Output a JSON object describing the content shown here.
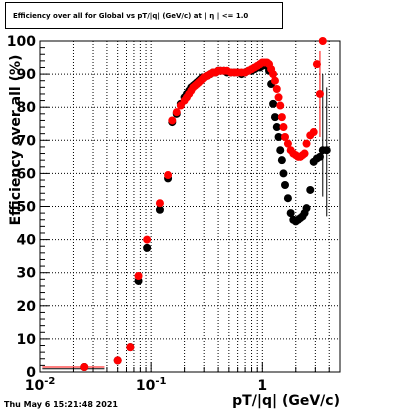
{
  "header": {
    "title": "Efficiency over all for Global vs pT/|q| (GeV/c) at | η | <= 1.0"
  },
  "footer": {
    "timestamp": "Thu May  6 15:21:48 2021"
  },
  "chart_data": {
    "type": "scatter",
    "title": "Efficiency over all for Global vs pT/|q| (GeV/c) at | η | <= 1.0",
    "xlabel": "pT/|q| (GeV/c)",
    "ylabel": "Efficiency over all (%)",
    "xscale": "log",
    "xlim": [
      0.01,
      5
    ],
    "ylim": [
      0,
      100
    ],
    "grid": true,
    "legend": "none",
    "x_ticks": [
      {
        "value": 0.01,
        "base": "10",
        "exp": "-2"
      },
      {
        "value": 0.1,
        "base": "10",
        "exp": "-1"
      },
      {
        "value": 1,
        "base": "1",
        "exp": ""
      }
    ],
    "y_ticks": [
      "0",
      "10",
      "20",
      "30",
      "40",
      "50",
      "60",
      "70",
      "80",
      "90",
      "100"
    ],
    "series": [
      {
        "color": "#000000",
        "x": [
          0.025,
          0.05,
          0.065,
          0.077,
          0.092,
          0.12,
          0.142,
          0.155,
          0.17,
          0.185,
          0.2,
          0.21,
          0.22,
          0.23,
          0.24,
          0.25,
          0.26,
          0.27,
          0.28,
          0.29,
          0.3,
          0.32,
          0.34,
          0.36,
          0.38,
          0.4,
          0.42,
          0.45,
          0.48,
          0.52,
          0.56,
          0.6,
          0.65,
          0.7,
          0.75,
          0.8,
          0.85,
          0.9,
          0.95,
          1.0,
          1.05,
          1.1,
          1.15,
          1.2,
          1.25,
          1.3,
          1.35,
          1.4,
          1.45,
          1.5,
          1.55,
          1.6,
          1.7,
          1.8,
          1.9,
          2.0,
          2.1,
          2.2,
          2.3,
          2.4,
          2.5,
          2.7,
          2.9,
          3.1,
          3.3,
          3.5,
          3.8
        ],
        "y": [
          1.5,
          3.5,
          7.5,
          27.5,
          37.5,
          49,
          58.5,
          75.5,
          78,
          81,
          83,
          84,
          85,
          86,
          86.5,
          87,
          87.5,
          88,
          88.5,
          89,
          89,
          89.5,
          90,
          90.5,
          90.5,
          91,
          91,
          91,
          90.5,
          90.5,
          90.5,
          90.5,
          90,
          90.5,
          91,
          91,
          91.5,
          92,
          92,
          92.5,
          93,
          92.5,
          91,
          87,
          81,
          77,
          74,
          71,
          67,
          64,
          60,
          56.5,
          52.5,
          48,
          46,
          45.5,
          46,
          46.5,
          47,
          48,
          49.5,
          55,
          63.5,
          64.5,
          65,
          67,
          67
        ]
      },
      {
        "color": "#ff0000",
        "x": [
          0.025,
          0.05,
          0.065,
          0.077,
          0.092,
          0.12,
          0.142,
          0.155,
          0.17,
          0.185,
          0.2,
          0.21,
          0.22,
          0.23,
          0.24,
          0.25,
          0.26,
          0.27,
          0.28,
          0.29,
          0.3,
          0.32,
          0.34,
          0.36,
          0.38,
          0.4,
          0.42,
          0.45,
          0.48,
          0.52,
          0.56,
          0.6,
          0.65,
          0.7,
          0.75,
          0.8,
          0.85,
          0.9,
          0.95,
          1.0,
          1.05,
          1.1,
          1.15,
          1.2,
          1.25,
          1.3,
          1.35,
          1.4,
          1.45,
          1.5,
          1.55,
          1.6,
          1.7,
          1.8,
          1.9,
          2.0,
          2.1,
          2.2,
          2.3,
          2.4,
          2.5,
          2.7,
          2.9,
          3.1,
          3.3,
          3.5
        ],
        "y": [
          1.5,
          3.5,
          7.5,
          29,
          40,
          51,
          59.5,
          76,
          78.5,
          80.5,
          82,
          83,
          84,
          85,
          86,
          86.5,
          87,
          87.5,
          88,
          88.5,
          89,
          89.5,
          90,
          90.5,
          90.5,
          91,
          91,
          91,
          91,
          90.5,
          90.5,
          90.5,
          90.5,
          90.5,
          91,
          91.5,
          92,
          92.5,
          93,
          93.5,
          93.5,
          93.5,
          93,
          91.5,
          90,
          88,
          85.5,
          83,
          80.5,
          77,
          74,
          71,
          69,
          67,
          66,
          65.5,
          65,
          65,
          65.5,
          66,
          69,
          71.5,
          72.5,
          93,
          84,
          100
        ]
      }
    ]
  }
}
